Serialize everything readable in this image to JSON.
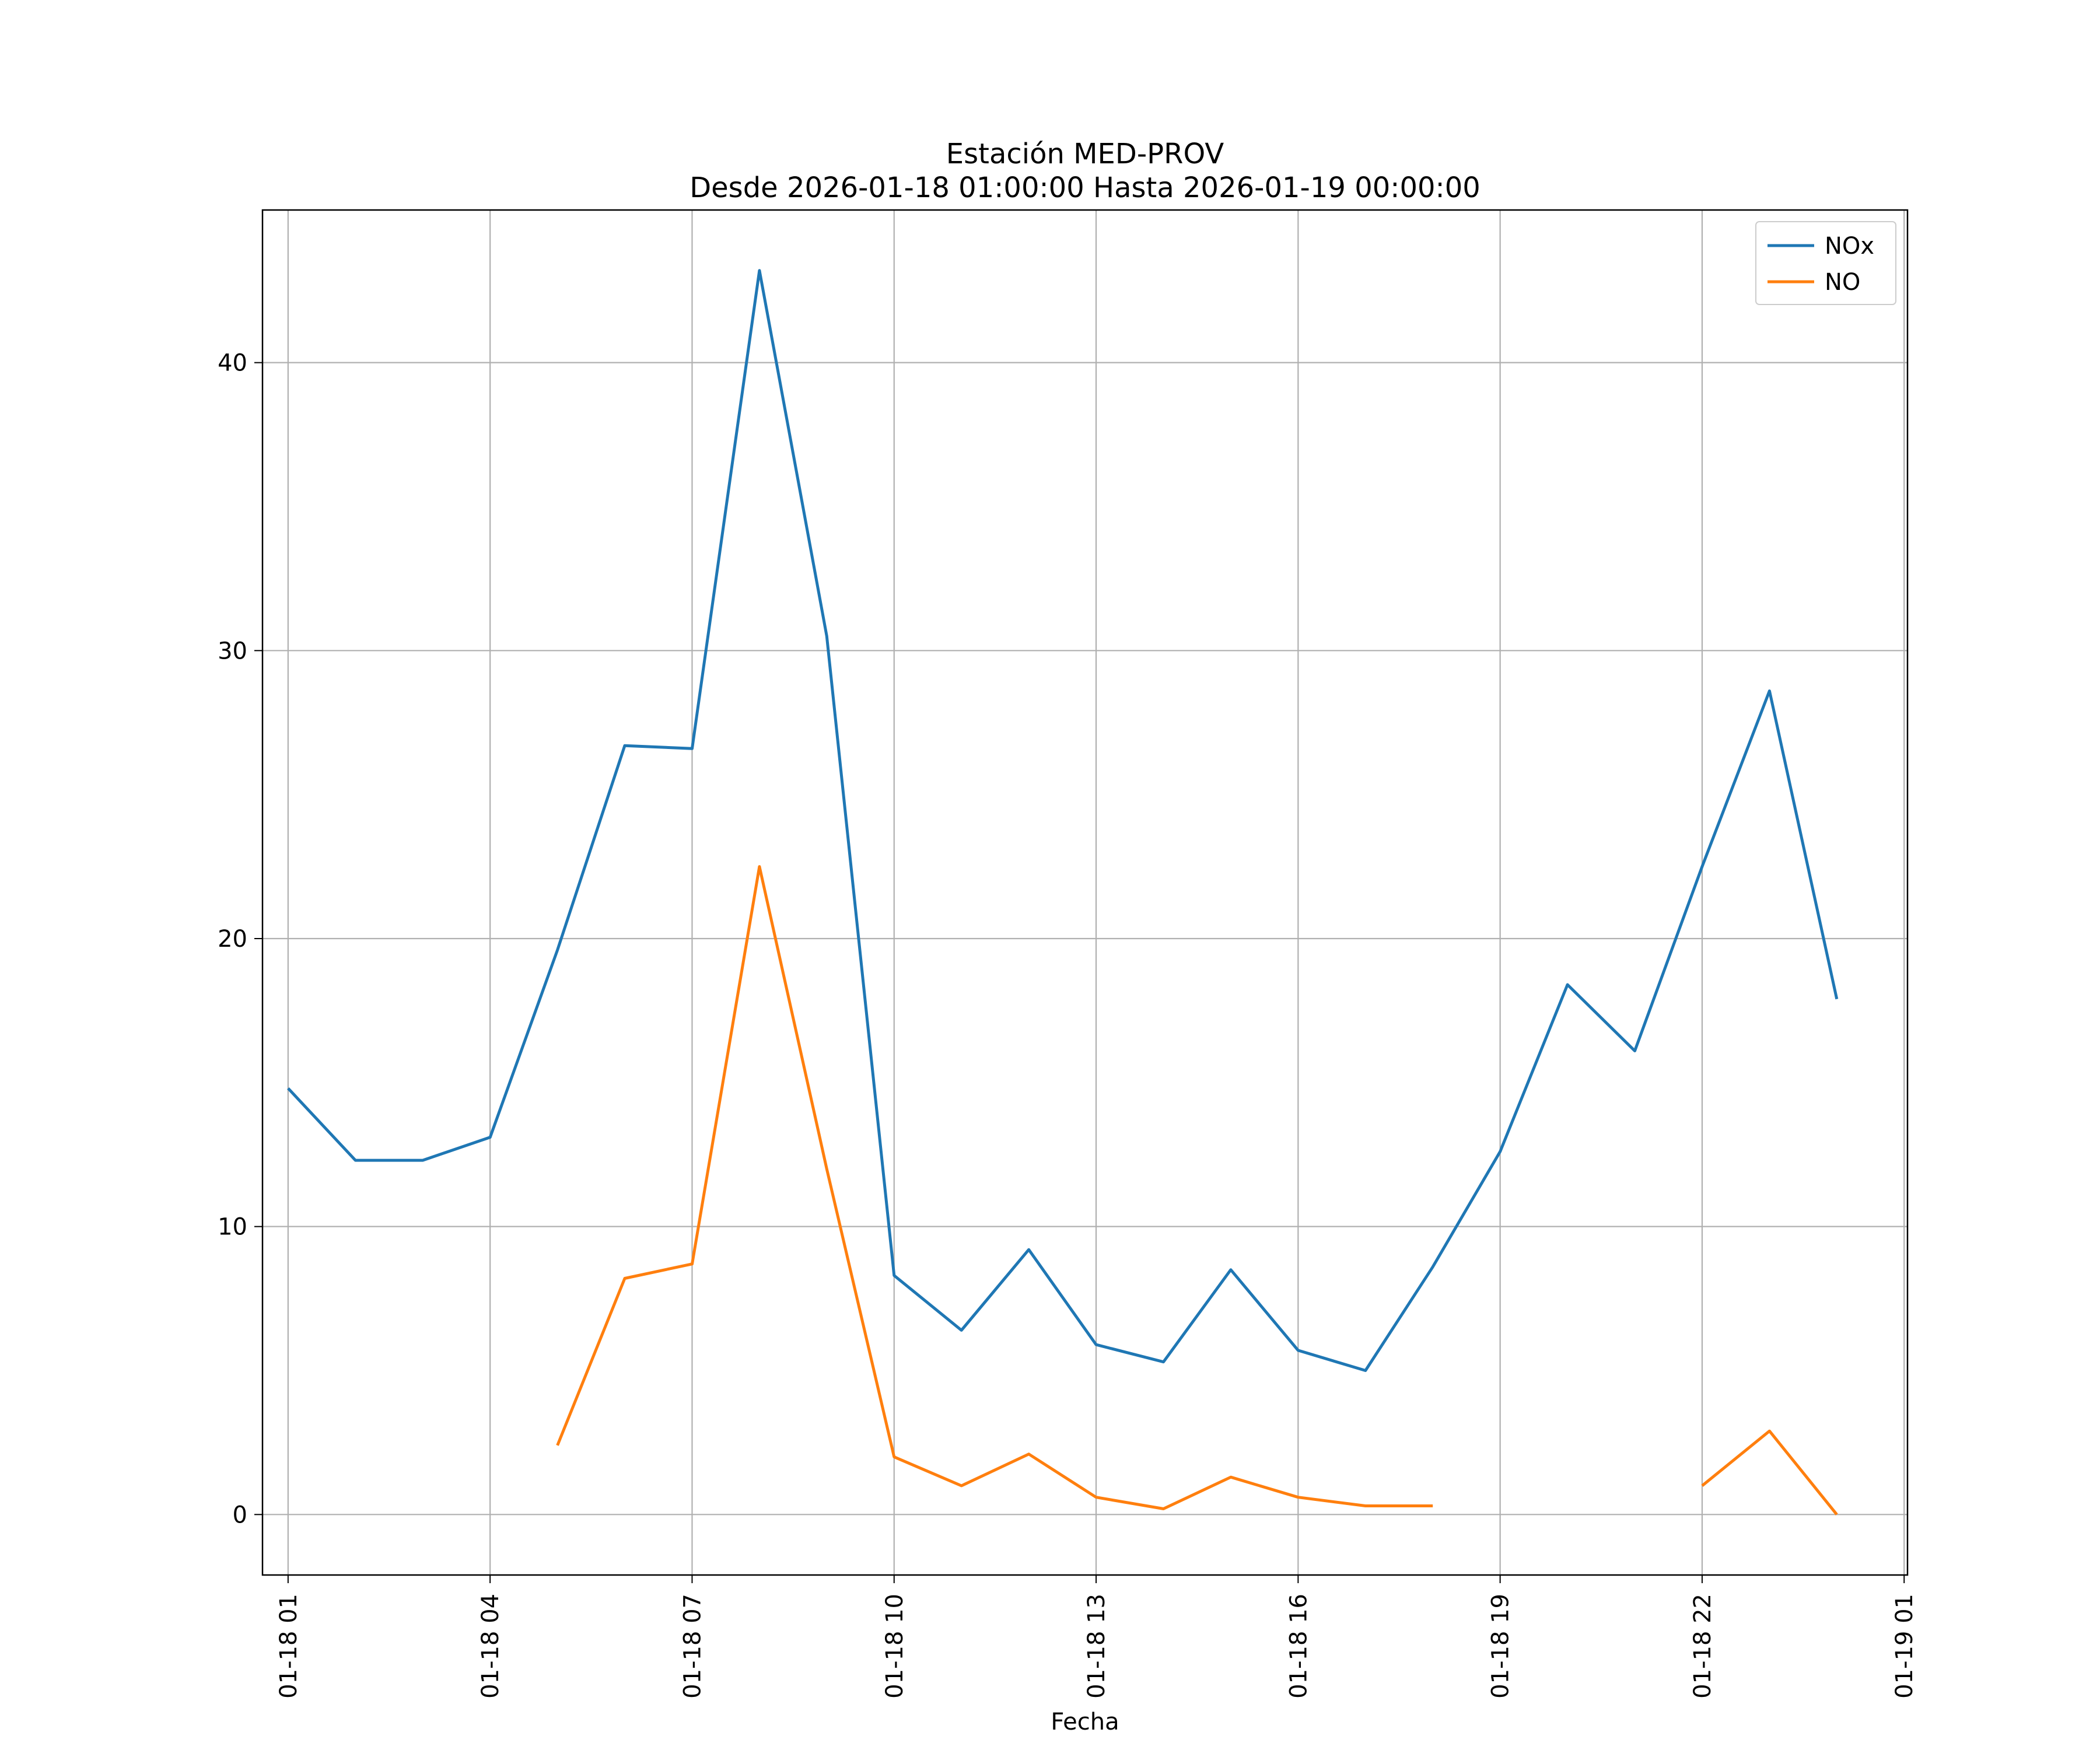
{
  "chart_data": {
    "type": "line",
    "title": "Estación MED-PROV",
    "subtitle": "Desde 2026-01-18 01:00:00 Hasta 2026-01-19 00:00:00",
    "xlabel": "Fecha",
    "ylabel": "",
    "x_unit": "hours since 2026-01-18 00:00",
    "xlim": [
      0.62,
      25.05
    ],
    "ylim": [
      -2.1,
      45.3
    ],
    "grid": true,
    "legend_position": "top-right",
    "x_ticks": [
      {
        "x": 1,
        "label": "01-18 01"
      },
      {
        "x": 4,
        "label": "01-18 04"
      },
      {
        "x": 7,
        "label": "01-18 07"
      },
      {
        "x": 10,
        "label": "01-18 10"
      },
      {
        "x": 13,
        "label": "01-18 13"
      },
      {
        "x": 16,
        "label": "01-18 16"
      },
      {
        "x": 19,
        "label": "01-18 19"
      },
      {
        "x": 22,
        "label": "01-18 22"
      },
      {
        "x": 25,
        "label": "01-19 01"
      }
    ],
    "y_ticks": [
      {
        "y": 0,
        "label": "0"
      },
      {
        "y": 10,
        "label": "10"
      },
      {
        "y": 20,
        "label": "20"
      },
      {
        "y": 30,
        "label": "30"
      },
      {
        "y": 40,
        "label": "40"
      }
    ],
    "x": [
      1,
      2,
      3,
      4,
      5,
      6,
      7,
      8,
      9,
      10,
      11,
      12,
      13,
      14,
      15,
      16,
      17,
      18,
      19,
      20,
      21,
      22,
      23,
      24
    ],
    "series": [
      {
        "name": "NOx",
        "color": "#1f77b4",
        "values": [
          14.8,
          12.3,
          12.3,
          13.1,
          19.6,
          26.7,
          26.6,
          43.2,
          30.5,
          8.3,
          6.4,
          9.2,
          5.9,
          5.3,
          8.5,
          5.7,
          5.0,
          8.6,
          12.6,
          18.4,
          16.1,
          22.5,
          28.6,
          17.9
        ]
      },
      {
        "name": "NO",
        "color": "#ff7f0e",
        "values": [
          null,
          null,
          null,
          null,
          2.4,
          8.2,
          8.7,
          22.5,
          12.0,
          2.0,
          1.0,
          2.1,
          0.6,
          0.2,
          1.3,
          0.6,
          0.3,
          0.3,
          null,
          null,
          null,
          1.0,
          2.9,
          0.0
        ]
      }
    ]
  }
}
